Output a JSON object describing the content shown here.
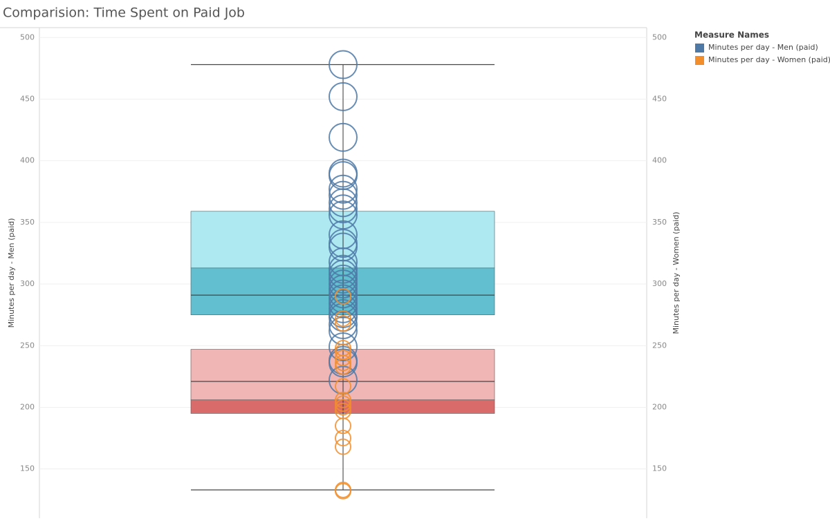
{
  "chart_data": {
    "type": "scatter",
    "title": "Comparision: Time Spent on Paid Job",
    "ylabel": "Minutes per day - Men (paid)",
    "y2label": "Minutes per day - Women (paid)",
    "legend_title": "Measure Names",
    "legend": "right",
    "ylim": [
      110,
      508
    ],
    "yticks": [
      150,
      200,
      250,
      300,
      350,
      400,
      450,
      500
    ],
    "y2lim": [
      110,
      508
    ],
    "y2ticks": [
      150,
      200,
      250,
      300,
      350,
      400,
      450,
      500
    ],
    "grid": true,
    "series": [
      {
        "name": "Minutes per day - Men (paid)",
        "color": "#4e79a7",
        "values": [
          478,
          452,
          419,
          390,
          388,
          377,
          372,
          366,
          361,
          356,
          340,
          333,
          330,
          318,
          312,
          308,
          304,
          300,
          296,
          292,
          288,
          284,
          280,
          276,
          273,
          267,
          262,
          249,
          238,
          236,
          222
        ]
      },
      {
        "name": "Minutes per day - Women (paid)",
        "color": "#f28e2b",
        "axis": "y2",
        "values": [
          290,
          272,
          268,
          248,
          245,
          240,
          236,
          233,
          217,
          206,
          203,
          200,
          197,
          185,
          175,
          168,
          133,
          132
        ]
      }
    ],
    "bands": [
      {
        "from": 313,
        "to": 359,
        "color": "#aee8f0"
      },
      {
        "from": 275,
        "to": 313,
        "color": "#62bfd0"
      },
      {
        "from": 206,
        "to": 247,
        "color": "#f0b6b6"
      },
      {
        "from": 195,
        "to": 206,
        "color": "#d96b6b"
      }
    ],
    "lines": [
      478,
      291,
      221,
      133
    ]
  }
}
